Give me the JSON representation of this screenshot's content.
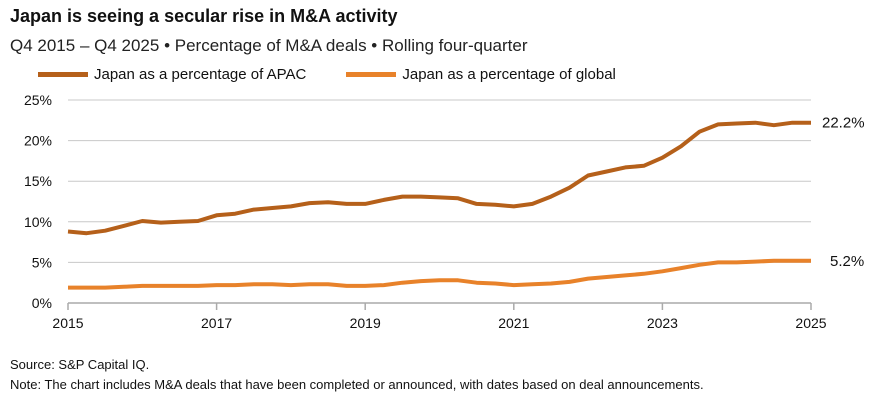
{
  "title": "Japan is seeing a secular rise in M&A activity",
  "subtitle": "Q4 2015 – Q4 2025 • Percentage of M&A deals • Rolling four-quarter",
  "source": "Source: S&P Capital IQ.",
  "note": "Note: The chart includes M&A deals that have been completed or announced, with dates based on deal announcements.",
  "chart_data": {
    "type": "line",
    "x_start": "Q4 2015",
    "x_step": "quarter",
    "x_ticks": [
      "2015",
      "2017",
      "2019",
      "2021",
      "2023",
      "2025"
    ],
    "y_ticks": [
      "0%",
      "5%",
      "10%",
      "15%",
      "20%",
      "25%"
    ],
    "ylim": [
      0,
      25
    ],
    "grid": true,
    "legend": "top-left",
    "series": [
      {
        "name": "Japan as a percentage of APAC",
        "color": "#B5601A",
        "end_label": "22.2%",
        "values": [
          8.8,
          8.6,
          8.9,
          9.5,
          10.1,
          9.9,
          10.0,
          10.1,
          10.8,
          11.0,
          11.5,
          11.7,
          11.9,
          12.3,
          12.4,
          12.2,
          12.2,
          12.7,
          13.1,
          13.1,
          13.0,
          12.9,
          12.2,
          12.1,
          11.9,
          12.2,
          13.1,
          14.2,
          15.7,
          16.2,
          16.7,
          16.9,
          17.9,
          19.3,
          21.1,
          22.0,
          22.1,
          22.2,
          21.9,
          22.2,
          22.2
        ]
      },
      {
        "name": "Japan as a percentage of global",
        "color": "#E8822A",
        "end_label": "5.2%",
        "values": [
          1.9,
          1.9,
          1.9,
          2.0,
          2.1,
          2.1,
          2.1,
          2.1,
          2.2,
          2.2,
          2.3,
          2.3,
          2.2,
          2.3,
          2.3,
          2.1,
          2.1,
          2.2,
          2.5,
          2.7,
          2.8,
          2.8,
          2.5,
          2.4,
          2.2,
          2.3,
          2.4,
          2.6,
          3.0,
          3.2,
          3.4,
          3.6,
          3.9,
          4.3,
          4.7,
          5.0,
          5.0,
          5.1,
          5.2,
          5.2,
          5.2
        ]
      }
    ]
  }
}
